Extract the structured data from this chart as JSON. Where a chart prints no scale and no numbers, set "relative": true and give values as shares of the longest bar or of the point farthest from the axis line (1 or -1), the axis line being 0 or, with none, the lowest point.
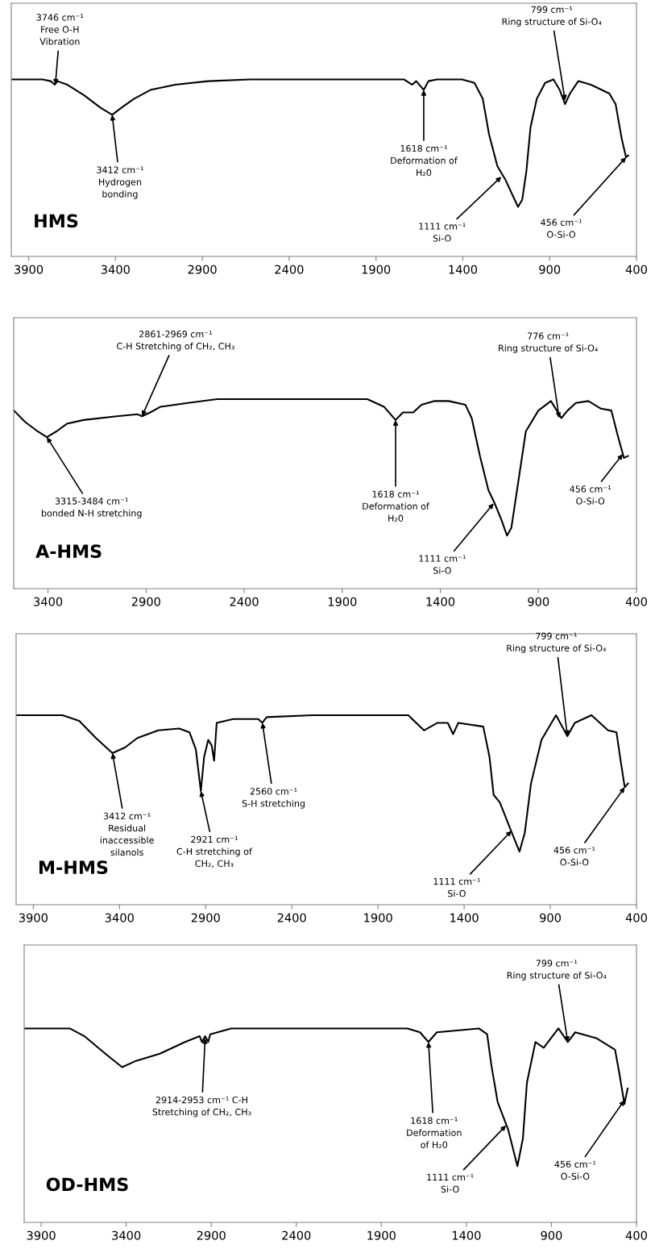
{
  "chart_data": [
    {
      "type": "line",
      "title": "HMS",
      "relative": true,
      "tick_labels": "x",
      "xlim": [
        4000,
        400
      ],
      "xticks": [
        3900,
        3400,
        2900,
        2400,
        1900,
        1400,
        900,
        400
      ],
      "series": [
        {
          "color": "#000000",
          "x": [
            4000,
            3821,
            3773,
            3749,
            3735,
            3677,
            3581,
            3486,
            3419,
            3366,
            3294,
            3199,
            3055,
            2864,
            2625,
            1740,
            1692,
            1668,
            1625,
            1598,
            1548,
            1405,
            1333,
            1285,
            1249,
            1201,
            1153,
            1106,
            1082,
            1058,
            1034,
            1010,
            974,
            926,
            878,
            842,
            811,
            783,
            735,
            663,
            556,
            520,
            484,
            460,
            448
          ],
          "values": [
            1.0,
            1.0,
            0.99,
            0.97,
            0.99,
            0.97,
            0.91,
            0.84,
            0.8,
            0.84,
            0.89,
            0.94,
            0.97,
            0.99,
            1.0,
            1.0,
            0.97,
            0.99,
            0.94,
            0.99,
            1.0,
            1.0,
            0.98,
            0.89,
            0.69,
            0.51,
            0.43,
            0.33,
            0.28,
            0.32,
            0.48,
            0.73,
            0.89,
            0.98,
            1.0,
            0.94,
            0.86,
            0.92,
            0.99,
            0.97,
            0.92,
            0.86,
            0.66,
            0.56,
            0.57
          ]
        }
      ],
      "annotations": [
        {
          "text": "3746 cm⁻¹\nFree O-H\nVibration",
          "x": 3746,
          "y": 0.97
        },
        {
          "text": "3412 cm⁻¹\nHydrogen\nbonding",
          "x": 3419,
          "y": 0.8
        },
        {
          "text": "1618 cm⁻¹\nDeformation of\nH₂0",
          "x": 1625,
          "y": 0.94
        },
        {
          "text": "1111 cm⁻¹\nSi-O",
          "x": 1178,
          "y": 0.45
        },
        {
          "text": "456 cm⁻¹\nO-Si-O",
          "x": 460,
          "y": 0.56
        },
        {
          "text": "799 cm⁻¹\nRing structure of Si-O₄",
          "x": 811,
          "y": 0.88
        }
      ]
    },
    {
      "type": "line",
      "title": "A-HMS",
      "relative": true,
      "tick_labels": "x",
      "xlim": [
        3575,
        400
      ],
      "xticks": [
        3400,
        2900,
        2400,
        1900,
        1400,
        900,
        400
      ],
      "series": [
        {
          "color": "#000000",
          "x": [
            3574,
            3517,
            3453,
            3406,
            3357,
            3304,
            3219,
            3049,
            2943,
            2921,
            2879,
            2826,
            2687,
            2538,
            1772,
            1687,
            1628,
            1591,
            1538,
            1496,
            1432,
            1357,
            1272,
            1240,
            1198,
            1155,
            1123,
            1091,
            1060,
            1038,
            1006,
            964,
            900,
            836,
            783,
            751,
            709,
            645,
            581,
            528,
            496,
            464,
            443
          ],
          "values": [
            0.94,
            0.88,
            0.83,
            0.8,
            0.83,
            0.87,
            0.89,
            0.91,
            0.92,
            0.91,
            0.93,
            0.96,
            0.98,
            1.0,
            1.0,
            0.96,
            0.89,
            0.93,
            0.93,
            0.97,
            0.99,
            0.99,
            0.97,
            0.9,
            0.7,
            0.52,
            0.45,
            0.37,
            0.28,
            0.32,
            0.54,
            0.83,
            0.94,
            0.99,
            0.9,
            0.94,
            0.98,
            0.99,
            0.95,
            0.94,
            0.81,
            0.69,
            0.7
          ]
        }
      ],
      "annotations": [
        {
          "text": "2861-2969 cm⁻¹\nC-H Stretching of CH₂, CH₃",
          "x": 2921,
          "y": 0.91
        },
        {
          "text": "3315-3484 cm⁻¹\nbonded N-H stretching",
          "x": 3406,
          "y": 0.8
        },
        {
          "text": "1618 cm⁻¹\nDeformation of\nH₂0",
          "x": 1628,
          "y": 0.89
        },
        {
          "text": "1111 cm⁻¹\nSi-O",
          "x": 1128,
          "y": 0.45
        },
        {
          "text": "456 cm⁻¹\nO-Si-O",
          "x": 470,
          "y": 0.71
        },
        {
          "text": "776 cm⁻¹\nRing structure of Si-O₄",
          "x": 794,
          "y": 0.9
        }
      ]
    },
    {
      "type": "line",
      "title": "M-HMS",
      "relative": true,
      "tick_labels": "x",
      "xlim": [
        4000,
        400
      ],
      "xticks": [
        3900,
        3400,
        2900,
        2400,
        1900,
        1400,
        900,
        400
      ],
      "series": [
        {
          "color": "#000000",
          "x": [
            4000,
            3731,
            3634,
            3537,
            3441,
            3368,
            3296,
            3175,
            3054,
            2994,
            2957,
            2928,
            2909,
            2885,
            2865,
            2851,
            2836,
            2740,
            2595,
            2571,
            2546,
            2280,
            1724,
            1633,
            1555,
            1495,
            1464,
            1434,
            1289,
            1253,
            1229,
            1193,
            1132,
            1079,
            1048,
            1012,
            951,
            867,
            801,
            758,
            661,
            565,
            516,
            492,
            468,
            449
          ],
          "values": [
            1.0,
            1.0,
            0.97,
            0.88,
            0.8,
            0.83,
            0.88,
            0.92,
            0.93,
            0.91,
            0.82,
            0.6,
            0.78,
            0.87,
            0.84,
            0.76,
            0.96,
            0.98,
            0.98,
            0.96,
            0.99,
            1.0,
            1.0,
            0.92,
            0.96,
            0.96,
            0.9,
            0.96,
            0.94,
            0.78,
            0.58,
            0.54,
            0.4,
            0.28,
            0.38,
            0.64,
            0.87,
            1.0,
            0.89,
            0.96,
            1.0,
            0.92,
            0.91,
            0.76,
            0.62,
            0.64
          ]
        }
      ],
      "annotations": [
        {
          "text": "3412 cm⁻¹\nResidual\ninaccessible\nsilanols",
          "x": 3441,
          "y": 0.8
        },
        {
          "text": "2921 cm⁻¹\nC-H stretching of\nCH₂, CH₃",
          "x": 2928,
          "y": 0.6
        },
        {
          "text": "2560 cm⁻¹\nS-H stretching",
          "x": 2571,
          "y": 0.96
        },
        {
          "text": "1111 cm⁻¹\nSi-O",
          "x": 1125,
          "y": 0.39
        },
        {
          "text": "456 cm⁻¹\nO-Si-O",
          "x": 468,
          "y": 0.62
        },
        {
          "text": "799 cm⁻¹\nRing structure of Si-O₄",
          "x": 801,
          "y": 0.89
        }
      ]
    },
    {
      "type": "line",
      "title": "OD-HMS",
      "relative": true,
      "tick_labels": "x",
      "xlim": [
        4000,
        400
      ],
      "xticks": [
        3900,
        3400,
        2900,
        2400,
        1900,
        1400,
        900,
        400
      ],
      "series": [
        {
          "color": "#000000",
          "x": [
            4000,
            3732,
            3646,
            3523,
            3424,
            3350,
            3202,
            3054,
            2968,
            2955,
            2936,
            2918,
            2906,
            2783,
            1747,
            1673,
            1623,
            1574,
            1327,
            1278,
            1253,
            1216,
            1155,
            1100,
            1068,
            1044,
            994,
            945,
            859,
            804,
            760,
            637,
            526,
            501,
            471,
            452
          ],
          "values": [
            1.0,
            1.0,
            0.96,
            0.87,
            0.8,
            0.83,
            0.87,
            0.93,
            0.96,
            0.93,
            0.96,
            0.93,
            0.97,
            1.0,
            1.0,
            0.98,
            0.93,
            0.98,
            1.0,
            0.97,
            0.81,
            0.62,
            0.48,
            0.29,
            0.43,
            0.72,
            0.93,
            0.9,
            1.0,
            0.93,
            0.98,
            0.95,
            0.89,
            0.77,
            0.61,
            0.69
          ]
        }
      ],
      "annotations": [
        {
          "text": "2914-2953 cm⁻¹ C-H\nStretching of CH₂, CH₃",
          "x": 2936,
          "y": 0.95
        },
        {
          "text": "1618 cm⁻¹\nDeformation\nof H₂0",
          "x": 1623,
          "y": 0.93
        },
        {
          "text": "1111 cm⁻¹\nSi-O",
          "x": 1167,
          "y": 0.5
        },
        {
          "text": "456 cm⁻¹\nO-Si-O",
          "x": 471,
          "y": 0.63
        },
        {
          "text": "799 cm⁻¹\nRing structure of Si-O₄",
          "x": 804,
          "y": 0.93
        }
      ]
    }
  ]
}
